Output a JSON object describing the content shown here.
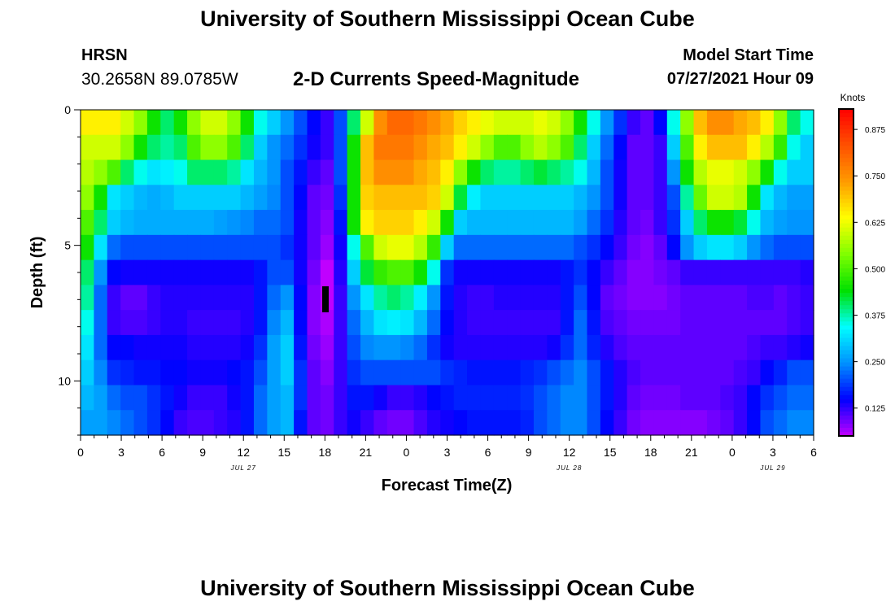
{
  "header": {
    "title": "University of Southern Mississippi Ocean Cube",
    "footer_title": "University of Southern Mississippi Ocean Cube",
    "station": "HRSN",
    "coords": "30.2658N  89.0785W",
    "model_label": "Model Start Time",
    "model_time": "07/27/2021 Hour 09"
  },
  "chart_data": {
    "type": "heatmap",
    "title": "2-D Currents Speed-Magnitude",
    "xlabel": "Forecast Time(Z)",
    "ylabel": "Depth (ft)",
    "x_tick_labels": [
      "0",
      "3",
      "6",
      "9",
      "12",
      "15",
      "18",
      "21",
      "0",
      "3",
      "6",
      "9",
      "12",
      "15",
      "18",
      "21",
      "0",
      "3",
      "6"
    ],
    "x_range_hours": [
      0,
      54
    ],
    "date_labels": [
      {
        "text": "JUL 27",
        "hour": 12
      },
      {
        "text": "JUL 28",
        "hour": 36
      },
      {
        "text": "JUL 29",
        "hour": 51
      }
    ],
    "y_tick_labels": [
      "0",
      "5",
      "10"
    ],
    "y_tick_values": [
      0,
      5,
      10
    ],
    "y_range_ft": [
      0,
      12
    ],
    "colorbar": {
      "label": "Knots",
      "tick_labels": [
        "0.875",
        "0.750",
        "0.625",
        "0.500",
        "0.375",
        "0.250",
        "0.125"
      ],
      "tick_values": [
        0.875,
        0.75,
        0.625,
        0.5,
        0.375,
        0.25,
        0.125
      ],
      "range": [
        0.05,
        0.93
      ],
      "colors": [
        "#c000ff",
        "#0000ff",
        "#0090ff",
        "#00ffff",
        "#00e000",
        "#80ff00",
        "#ffff00",
        "#ff9a00",
        "#ff5000",
        "#ff0000"
      ]
    },
    "depth_layers_ft": [
      0,
      1,
      2,
      3,
      4,
      5,
      6,
      7,
      8,
      9,
      10,
      11,
      12
    ],
    "time_hours": [
      0,
      1,
      2,
      3,
      4,
      5,
      6,
      7,
      8,
      9,
      10,
      11,
      12,
      13,
      14,
      15,
      16,
      17,
      18,
      19,
      20,
      21,
      22,
      23,
      24,
      25,
      26,
      27,
      28,
      29,
      30,
      31,
      32,
      33,
      34,
      35,
      36,
      37,
      38,
      39,
      40,
      41,
      42,
      43,
      44,
      45,
      46,
      47,
      48,
      49,
      50,
      51,
      52,
      53,
      54
    ],
    "speed_knots": [
      [
        0.65,
        0.65,
        0.65,
        0.6,
        0.55,
        0.45,
        0.4,
        0.45,
        0.55,
        0.6,
        0.6,
        0.55,
        0.45,
        0.35,
        0.3,
        0.25,
        0.2,
        0.15,
        0.12,
        0.2,
        0.4,
        0.6,
        0.75,
        0.8,
        0.8,
        0.78,
        0.75,
        0.72,
        0.68,
        0.65,
        0.62,
        0.6,
        0.6,
        0.6,
        0.62,
        0.6,
        0.55,
        0.45,
        0.35,
        0.25,
        0.18,
        0.12,
        0.1,
        0.15,
        0.35,
        0.55,
        0.7,
        0.75,
        0.75,
        0.72,
        0.7,
        0.65,
        0.55,
        0.4,
        0.35
      ],
      [
        0.6,
        0.6,
        0.6,
        0.55,
        0.45,
        0.4,
        0.38,
        0.4,
        0.5,
        0.55,
        0.55,
        0.5,
        0.4,
        0.3,
        0.25,
        0.22,
        0.18,
        0.14,
        0.12,
        0.2,
        0.45,
        0.7,
        0.78,
        0.78,
        0.78,
        0.75,
        0.72,
        0.7,
        0.65,
        0.6,
        0.55,
        0.5,
        0.5,
        0.55,
        0.58,
        0.55,
        0.5,
        0.4,
        0.3,
        0.22,
        0.15,
        0.1,
        0.1,
        0.12,
        0.3,
        0.5,
        0.65,
        0.7,
        0.7,
        0.7,
        0.65,
        0.58,
        0.48,
        0.35,
        0.3
      ],
      [
        0.58,
        0.55,
        0.5,
        0.4,
        0.35,
        0.32,
        0.33,
        0.35,
        0.4,
        0.4,
        0.4,
        0.38,
        0.32,
        0.28,
        0.25,
        0.2,
        0.16,
        0.12,
        0.1,
        0.2,
        0.45,
        0.7,
        0.75,
        0.75,
        0.75,
        0.72,
        0.7,
        0.65,
        0.55,
        0.45,
        0.4,
        0.38,
        0.38,
        0.4,
        0.42,
        0.4,
        0.38,
        0.35,
        0.28,
        0.2,
        0.14,
        0.1,
        0.1,
        0.12,
        0.25,
        0.45,
        0.58,
        0.62,
        0.62,
        0.6,
        0.55,
        0.45,
        0.35,
        0.3,
        0.3
      ],
      [
        0.55,
        0.45,
        0.32,
        0.3,
        0.28,
        0.27,
        0.28,
        0.3,
        0.3,
        0.3,
        0.3,
        0.3,
        0.28,
        0.26,
        0.24,
        0.2,
        0.15,
        0.1,
        0.09,
        0.18,
        0.45,
        0.68,
        0.7,
        0.7,
        0.7,
        0.7,
        0.68,
        0.6,
        0.42,
        0.33,
        0.3,
        0.3,
        0.3,
        0.3,
        0.3,
        0.3,
        0.3,
        0.28,
        0.25,
        0.2,
        0.14,
        0.1,
        0.1,
        0.12,
        0.2,
        0.38,
        0.52,
        0.6,
        0.6,
        0.58,
        0.45,
        0.32,
        0.28,
        0.26,
        0.26
      ],
      [
        0.5,
        0.4,
        0.3,
        0.28,
        0.27,
        0.27,
        0.27,
        0.27,
        0.27,
        0.27,
        0.26,
        0.25,
        0.24,
        0.22,
        0.22,
        0.2,
        0.14,
        0.1,
        0.08,
        0.16,
        0.45,
        0.65,
        0.68,
        0.68,
        0.68,
        0.65,
        0.6,
        0.45,
        0.3,
        0.28,
        0.28,
        0.28,
        0.28,
        0.28,
        0.28,
        0.28,
        0.28,
        0.26,
        0.22,
        0.18,
        0.13,
        0.1,
        0.09,
        0.12,
        0.18,
        0.3,
        0.4,
        0.45,
        0.45,
        0.42,
        0.35,
        0.28,
        0.26,
        0.25,
        0.25
      ],
      [
        0.45,
        0.32,
        0.22,
        0.2,
        0.2,
        0.2,
        0.2,
        0.2,
        0.2,
        0.2,
        0.2,
        0.2,
        0.2,
        0.2,
        0.2,
        0.18,
        0.14,
        0.1,
        0.07,
        0.14,
        0.35,
        0.5,
        0.6,
        0.62,
        0.62,
        0.58,
        0.48,
        0.3,
        0.22,
        0.22,
        0.22,
        0.22,
        0.22,
        0.22,
        0.22,
        0.22,
        0.22,
        0.2,
        0.18,
        0.15,
        0.12,
        0.09,
        0.08,
        0.1,
        0.15,
        0.25,
        0.3,
        0.32,
        0.32,
        0.3,
        0.25,
        0.22,
        0.2,
        0.2,
        0.2
      ],
      [
        0.4,
        0.25,
        0.15,
        0.14,
        0.14,
        0.14,
        0.14,
        0.14,
        0.14,
        0.14,
        0.14,
        0.14,
        0.14,
        0.16,
        0.2,
        0.2,
        0.14,
        0.09,
        0.05,
        0.13,
        0.3,
        0.42,
        0.48,
        0.5,
        0.5,
        0.45,
        0.35,
        0.18,
        0.14,
        0.14,
        0.14,
        0.14,
        0.14,
        0.14,
        0.14,
        0.14,
        0.16,
        0.18,
        0.15,
        0.12,
        0.1,
        0.08,
        0.08,
        0.09,
        0.1,
        0.12,
        0.12,
        0.12,
        0.12,
        0.12,
        0.12,
        0.12,
        0.12,
        0.12,
        0.13
      ],
      [
        0.38,
        0.22,
        0.12,
        0.1,
        0.1,
        0.12,
        0.13,
        0.13,
        0.13,
        0.13,
        0.13,
        0.13,
        0.13,
        0.16,
        0.22,
        0.25,
        0.15,
        0.08,
        0.05,
        0.12,
        0.25,
        0.32,
        0.38,
        0.4,
        0.38,
        0.33,
        0.25,
        0.16,
        0.13,
        0.12,
        0.12,
        0.13,
        0.13,
        0.13,
        0.13,
        0.13,
        0.16,
        0.2,
        0.15,
        0.1,
        0.09,
        0.08,
        0.08,
        0.08,
        0.09,
        0.1,
        0.1,
        0.1,
        0.1,
        0.1,
        0.11,
        0.11,
        0.1,
        0.11,
        0.12
      ],
      [
        0.35,
        0.22,
        0.12,
        0.11,
        0.11,
        0.12,
        0.13,
        0.13,
        0.12,
        0.12,
        0.12,
        0.12,
        0.13,
        0.16,
        0.24,
        0.28,
        0.15,
        0.08,
        0.06,
        0.12,
        0.22,
        0.28,
        0.32,
        0.33,
        0.32,
        0.28,
        0.22,
        0.15,
        0.13,
        0.12,
        0.12,
        0.12,
        0.12,
        0.12,
        0.12,
        0.12,
        0.16,
        0.22,
        0.16,
        0.11,
        0.1,
        0.09,
        0.09,
        0.09,
        0.09,
        0.1,
        0.1,
        0.1,
        0.1,
        0.1,
        0.1,
        0.1,
        0.1,
        0.11,
        0.12
      ],
      [
        0.32,
        0.22,
        0.15,
        0.15,
        0.14,
        0.14,
        0.14,
        0.14,
        0.13,
        0.13,
        0.13,
        0.13,
        0.14,
        0.18,
        0.26,
        0.3,
        0.16,
        0.09,
        0.07,
        0.12,
        0.2,
        0.24,
        0.25,
        0.25,
        0.24,
        0.22,
        0.18,
        0.14,
        0.13,
        0.13,
        0.13,
        0.13,
        0.13,
        0.13,
        0.13,
        0.14,
        0.18,
        0.22,
        0.17,
        0.13,
        0.11,
        0.1,
        0.1,
        0.1,
        0.1,
        0.1,
        0.1,
        0.1,
        0.1,
        0.1,
        0.11,
        0.12,
        0.12,
        0.13,
        0.14
      ],
      [
        0.3,
        0.24,
        0.18,
        0.17,
        0.16,
        0.16,
        0.15,
        0.15,
        0.14,
        0.14,
        0.14,
        0.15,
        0.16,
        0.2,
        0.26,
        0.3,
        0.18,
        0.1,
        0.08,
        0.12,
        0.18,
        0.2,
        0.2,
        0.2,
        0.2,
        0.2,
        0.2,
        0.18,
        0.17,
        0.16,
        0.16,
        0.16,
        0.16,
        0.17,
        0.18,
        0.2,
        0.22,
        0.24,
        0.2,
        0.16,
        0.13,
        0.11,
        0.1,
        0.1,
        0.1,
        0.1,
        0.1,
        0.1,
        0.1,
        0.11,
        0.12,
        0.15,
        0.17,
        0.2,
        0.2
      ],
      [
        0.28,
        0.26,
        0.22,
        0.2,
        0.2,
        0.18,
        0.16,
        0.14,
        0.12,
        0.12,
        0.12,
        0.14,
        0.16,
        0.22,
        0.26,
        0.28,
        0.18,
        0.1,
        0.09,
        0.12,
        0.16,
        0.16,
        0.14,
        0.12,
        0.12,
        0.13,
        0.15,
        0.16,
        0.17,
        0.17,
        0.17,
        0.17,
        0.17,
        0.18,
        0.2,
        0.22,
        0.24,
        0.24,
        0.2,
        0.16,
        0.13,
        0.1,
        0.09,
        0.09,
        0.09,
        0.1,
        0.1,
        0.1,
        0.11,
        0.12,
        0.15,
        0.18,
        0.2,
        0.22,
        0.22
      ],
      [
        0.26,
        0.26,
        0.24,
        0.22,
        0.2,
        0.18,
        0.15,
        0.12,
        0.11,
        0.11,
        0.12,
        0.13,
        0.16,
        0.22,
        0.26,
        0.28,
        0.16,
        0.1,
        0.09,
        0.12,
        0.14,
        0.12,
        0.1,
        0.09,
        0.09,
        0.11,
        0.13,
        0.14,
        0.15,
        0.16,
        0.16,
        0.16,
        0.16,
        0.17,
        0.2,
        0.22,
        0.24,
        0.24,
        0.2,
        0.15,
        0.12,
        0.09,
        0.08,
        0.08,
        0.08,
        0.08,
        0.08,
        0.09,
        0.1,
        0.12,
        0.15,
        0.2,
        0.22,
        0.24,
        0.24
      ]
    ]
  }
}
